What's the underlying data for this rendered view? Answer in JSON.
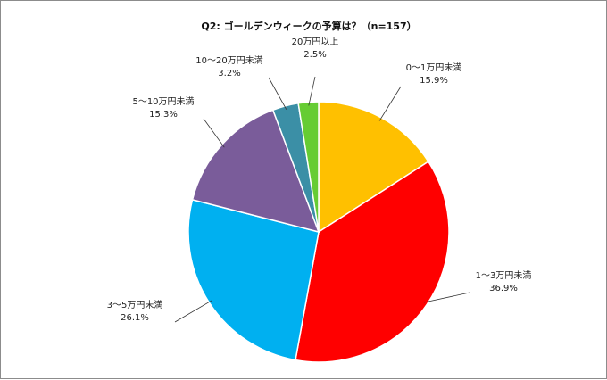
{
  "chart_data": {
    "type": "pie",
    "title": "Q2: ゴールデンウィークの予算は？（n=157）",
    "categories": [
      "0～1万円未満",
      "1～3万円未満",
      "3～5万円未満",
      "5～10万円未満",
      "10～20万円未満",
      "20万円以上"
    ],
    "values": [
      15.9,
      36.9,
      26.1,
      15.3,
      3.2,
      2.5
    ],
    "value_labels": [
      "15.9%",
      "36.9%",
      "26.1%",
      "15.3%",
      "3.2%",
      "2.5%"
    ],
    "colors": [
      "#FFC000",
      "#FF0000",
      "#00B0F0",
      "#7A5C9A",
      "#3B8FA6",
      "#66CC33"
    ],
    "legend": "none"
  }
}
